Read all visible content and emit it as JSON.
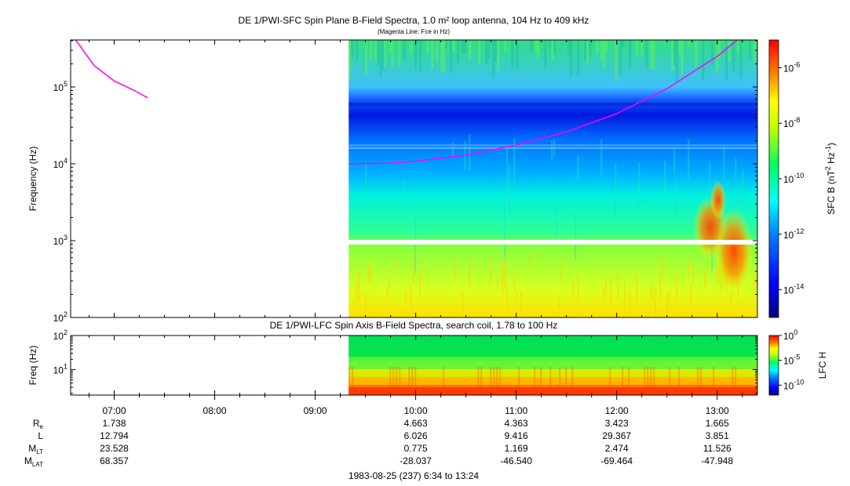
{
  "chart_data": [
    {
      "type": "heatmap",
      "title": "DE 1/PWI-SFC  Spin Plane B-Field Spectra, 1.0 m² loop antenna, 104 Hz to 409 kHz",
      "subtitle": "(Magenta Line: Fce in Hz)",
      "ylabel": "Frequency (Hz)",
      "yscale": "log",
      "ylim": [
        100,
        409000
      ],
      "yticks": [
        {
          "value": 100,
          "base": "10",
          "exp": "2"
        },
        {
          "value": 1000,
          "base": "10",
          "exp": "3"
        },
        {
          "value": 10000,
          "base": "10",
          "exp": "4"
        },
        {
          "value": 100000,
          "base": "10",
          "exp": "5"
        }
      ],
      "data_start": "09:20",
      "colorbar": {
        "label_main": "SFC B (nT",
        "label_exp1": "2",
        "label_mid": " Hz",
        "label_exp2": "-1",
        "label_end": ")",
        "scale": "log",
        "range": [
          1e-15,
          1e-05
        ],
        "ticks": [
          {
            "value": 1e-06,
            "base": "10",
            "exp": "-6"
          },
          {
            "value": 1e-08,
            "base": "10",
            "exp": "-8"
          },
          {
            "value": 1e-10,
            "base": "10",
            "exp": "-10"
          },
          {
            "value": 1e-12,
            "base": "10",
            "exp": "-12"
          },
          {
            "value": 1e-14,
            "base": "10",
            "exp": "-14"
          }
        ]
      },
      "fce_line": {
        "color": "#ff00ff",
        "segment1": [
          [
            "06:37",
            409000
          ],
          [
            "06:48",
            190000
          ],
          [
            "07:00",
            120000
          ],
          [
            "07:12",
            90000
          ],
          [
            "07:20",
            72000
          ]
        ],
        "segment2": [
          [
            "09:20",
            10000
          ],
          [
            "09:45",
            10200
          ],
          [
            "10:00",
            10800
          ],
          [
            "10:30",
            13000
          ],
          [
            "11:00",
            17500
          ],
          [
            "11:30",
            26000
          ],
          [
            "12:00",
            45000
          ],
          [
            "12:30",
            95000
          ],
          [
            "13:00",
            250000
          ],
          [
            "13:12",
            409000
          ]
        ]
      }
    },
    {
      "type": "heatmap",
      "title": "DE 1/PWI-LFC  Spin Axis B-Field Spectra, search coil, 1.78 to 100 Hz",
      "ylabel": "Freq (Hz)",
      "yscale": "log",
      "ylim": [
        1.78,
        100
      ],
      "yticks": [
        {
          "value": 10,
          "base": "10",
          "exp": "1"
        },
        {
          "value": 100,
          "base": "10",
          "exp": "2"
        }
      ],
      "data_start": "09:20",
      "colorbar": {
        "label": "LFC H",
        "scale": "log",
        "range": [
          1e-12,
          1
        ],
        "ticks": [
          {
            "value": 1,
            "base": "10",
            "exp": "0"
          },
          {
            "value": 1e-05,
            "base": "10",
            "exp": "-5"
          },
          {
            "value": 1e-10,
            "base": "10",
            "exp": "-10"
          }
        ]
      }
    }
  ],
  "time_axis": {
    "start": "06:34",
    "end": "13:24",
    "ticks": [
      "07:00",
      "08:00",
      "09:00",
      "10:00",
      "11:00",
      "12:00",
      "13:00"
    ]
  },
  "ephemeris": {
    "rows": [
      {
        "label": "R",
        "sub": "e",
        "values": [
          "1.738",
          "",
          "",
          "4.663",
          "4.363",
          "3.423",
          "1.665"
        ]
      },
      {
        "label": "L",
        "sub": "",
        "values": [
          "12.794",
          "",
          "",
          "6.026",
          "9.416",
          "29.367",
          "3.851"
        ]
      },
      {
        "label": "M",
        "sub": "LT",
        "values": [
          "23.528",
          "",
          "",
          "0.775",
          "1.169",
          "2.474",
          "11.526"
        ]
      },
      {
        "label": "M",
        "sub": "LAT",
        "values": [
          "68.357",
          "",
          "",
          "-28.037",
          "-46.540",
          "-69.464",
          "-47.948"
        ]
      }
    ]
  },
  "footer": "1983-08-25 (237) 6:34 to 13:24"
}
